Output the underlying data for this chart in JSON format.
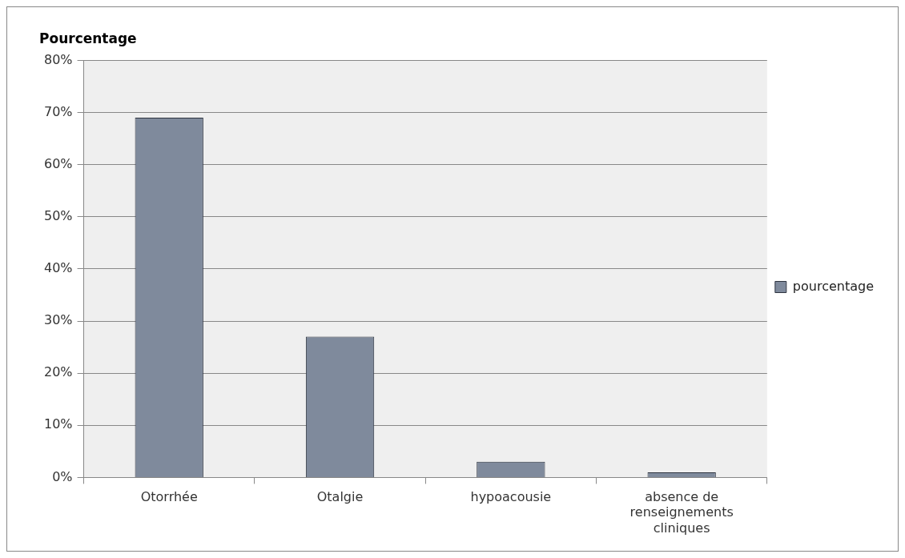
{
  "chart_data": {
    "type": "bar",
    "title": "Pourcentage",
    "categories": [
      "Otorrhée",
      "Otalgie",
      "hypoacousie",
      "absence de renseignements cliniques"
    ],
    "series": [
      {
        "name": "pourcentage",
        "color": "#7f8a9c",
        "values": [
          69,
          27,
          3,
          1
        ]
      }
    ],
    "ylim": [
      0,
      80
    ],
    "yticks": [
      {
        "value": 0,
        "label": "0%"
      },
      {
        "value": 10,
        "label": "10%"
      },
      {
        "value": 20,
        "label": "20%"
      },
      {
        "value": 30,
        "label": "30%"
      },
      {
        "value": 40,
        "label": "40%"
      },
      {
        "value": 50,
        "label": "50%"
      },
      {
        "value": 60,
        "label": "60%"
      },
      {
        "value": 70,
        "label": "70%"
      },
      {
        "value": 80,
        "label": "80%"
      }
    ],
    "grid": "y",
    "legend": "right"
  }
}
